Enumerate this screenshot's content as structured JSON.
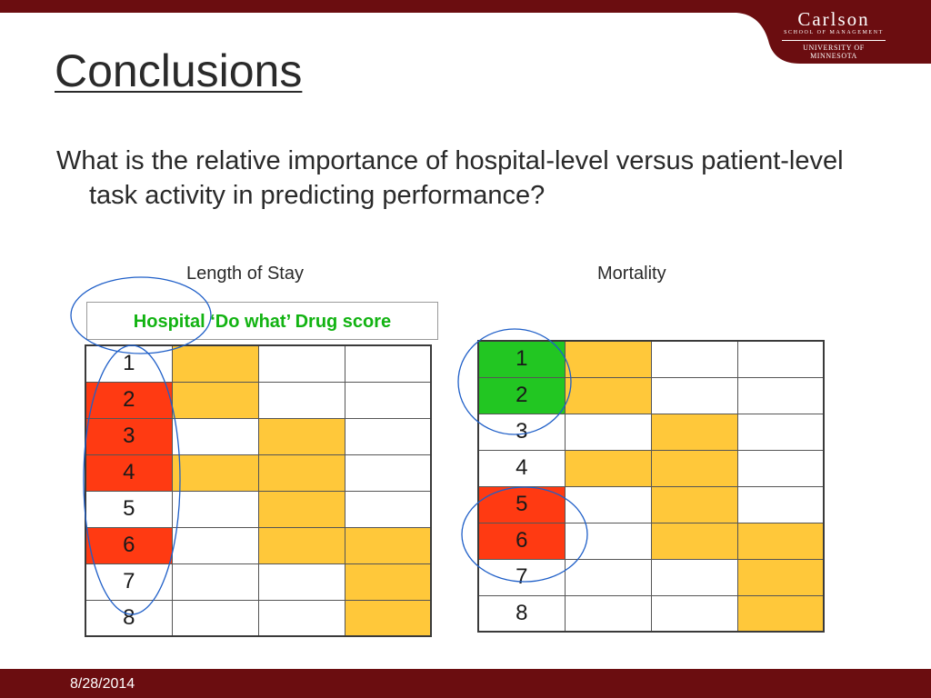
{
  "header": {
    "logo": {
      "line1": "Carlson",
      "line2": "School of Management",
      "line3": "University of Minnesota"
    }
  },
  "slide": {
    "title": "Conclusions",
    "question": "What is the relative importance of hospital-level versus patient-level task activity in predicting performance?"
  },
  "colors": {
    "white": "#ffffff",
    "red": "#ff3a12",
    "orange": "#ffc83a",
    "green": "#22c622",
    "brand": "#6b0d10",
    "oval": "#1f5fc8"
  },
  "length_of_stay": {
    "title": "Length of Stay",
    "drug_score_label": "Hospital ‘Do what’ Drug score",
    "rows": [
      {
        "rank": "1",
        "cells": [
          "white",
          "orange",
          "white",
          "white"
        ]
      },
      {
        "rank": "2",
        "cells": [
          "red",
          "orange",
          "white",
          "white"
        ]
      },
      {
        "rank": "3",
        "cells": [
          "red",
          "white",
          "orange",
          "white"
        ]
      },
      {
        "rank": "4",
        "cells": [
          "red",
          "orange",
          "orange",
          "white"
        ]
      },
      {
        "rank": "5",
        "cells": [
          "white",
          "white",
          "orange",
          "white"
        ]
      },
      {
        "rank": "6",
        "cells": [
          "red",
          "white",
          "orange",
          "orange"
        ]
      },
      {
        "rank": "7",
        "cells": [
          "white",
          "white",
          "white",
          "orange"
        ]
      },
      {
        "rank": "8",
        "cells": [
          "white",
          "white",
          "white",
          "orange"
        ]
      }
    ]
  },
  "mortality": {
    "title": "Mortality",
    "rows": [
      {
        "rank": "1",
        "cells": [
          "green",
          "orange",
          "white",
          "white"
        ]
      },
      {
        "rank": "2",
        "cells": [
          "green",
          "orange",
          "white",
          "white"
        ]
      },
      {
        "rank": "3",
        "cells": [
          "white",
          "white",
          "orange",
          "white"
        ]
      },
      {
        "rank": "4",
        "cells": [
          "white",
          "orange",
          "orange",
          "white"
        ]
      },
      {
        "rank": "5",
        "cells": [
          "red",
          "white",
          "orange",
          "white"
        ]
      },
      {
        "rank": "6",
        "cells": [
          "red",
          "white",
          "orange",
          "orange"
        ]
      },
      {
        "rank": "7",
        "cells": [
          "white",
          "white",
          "white",
          "orange"
        ]
      },
      {
        "rank": "8",
        "cells": [
          "white",
          "white",
          "white",
          "orange"
        ]
      }
    ]
  },
  "footer": {
    "date": "8/28/2014"
  }
}
